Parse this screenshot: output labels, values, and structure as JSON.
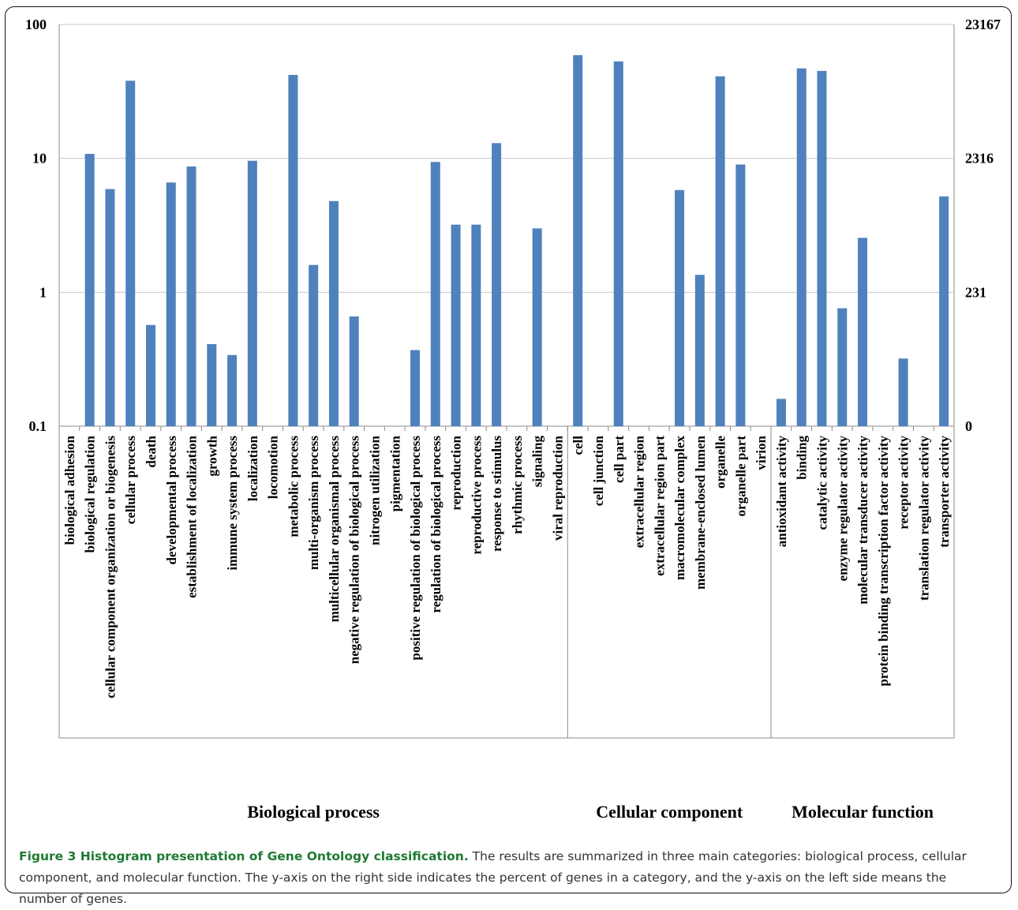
{
  "figure": {
    "caption_title": "Figure 3 Histogram presentation of Gene Ontology classification.",
    "caption_text": "The results are summarized in three main categories: biological process, cellular component, and molecular function. The y-axis on the right side indicates the percent of genes in a category, and the y-axis on the left side means the number of genes.",
    "title_color": "#1f7a33"
  },
  "chart_data": {
    "type": "bar",
    "bar_color": "#4f81bd",
    "y_scale": "log",
    "ylim": [
      0.1,
      100
    ],
    "grid": "horizontal",
    "left_ticks": [
      "100",
      "10",
      "1",
      "0.1"
    ],
    "right_ticks": [
      "23167",
      "2316",
      "231",
      "0"
    ],
    "categories": [
      "biological adhesion",
      "biological regulation",
      "cellular component organization or biogenesis",
      "cellular process",
      "death",
      "developmental process",
      "establishment of localization",
      "growth",
      "immune system process",
      "localization",
      "locomotion",
      "metabolic process",
      "multi-organism process",
      "multicellular organismal process",
      "negative regulation of biological process",
      "nitrogen utilization",
      "pigmentation",
      "positive regulation of biological process",
      "regulation of biological process",
      "reproduction",
      "reproductive process",
      "response to stimulus",
      "rhythmic process",
      "signaling",
      "viral reproduction",
      "cell",
      "cell junction",
      "cell part",
      "extracellular region",
      "extracellular region part",
      "macromolecular complex",
      "membrane-enclosed lumen",
      "organelle",
      "organelle part",
      "virion",
      "antioxidant activity",
      "binding",
      "catalytic activity",
      "enzyme regulator activity",
      "molecular transducer activity",
      "protein binding transcription factor activity",
      "receptor activity",
      "translation regulator activity",
      "transporter activity"
    ],
    "values": [
      null,
      10.8,
      5.9,
      38,
      0.57,
      6.6,
      8.7,
      0.41,
      0.34,
      9.6,
      null,
      42,
      1.6,
      4.8,
      0.66,
      null,
      null,
      0.37,
      9.4,
      3.2,
      3.2,
      13,
      null,
      3.0,
      null,
      59,
      null,
      53,
      null,
      null,
      5.8,
      1.35,
      41,
      9.0,
      null,
      0.16,
      47,
      45,
      0.76,
      2.55,
      null,
      0.32,
      null,
      5.2
    ],
    "groups": [
      {
        "name": "Biological process",
        "count": 25
      },
      {
        "name": "Cellular component",
        "count": 10
      },
      {
        "name": "Molecular function",
        "count": 9
      }
    ]
  }
}
